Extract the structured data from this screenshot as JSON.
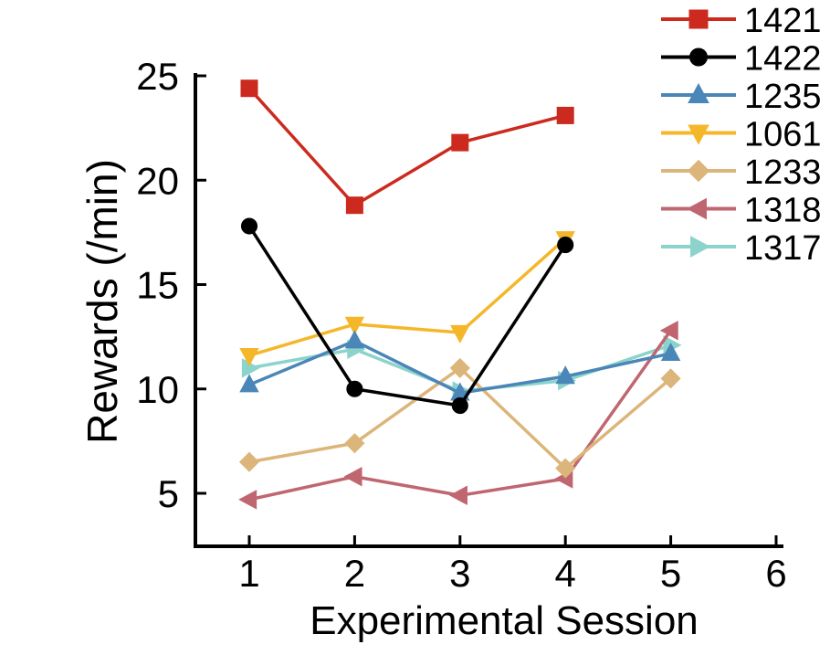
{
  "chart_data": {
    "type": "line",
    "title": "",
    "xlabel": "Experimental Session",
    "ylabel": "Rewards (/min)",
    "xlim": [
      0.5,
      6
    ],
    "ylim": [
      2.5,
      25.5
    ],
    "xticks": [
      1,
      2,
      3,
      4,
      5,
      6
    ],
    "yticks": [
      5,
      10,
      15,
      20,
      25
    ],
    "grid": false,
    "legend_position": "top-right",
    "series": [
      {
        "name": "1421",
        "color": "#cc2a1e",
        "marker": "square",
        "x": [
          1,
          2,
          3,
          4
        ],
        "values": [
          24.4,
          18.8,
          21.8,
          23.1
        ]
      },
      {
        "name": "1422",
        "color": "#000000",
        "marker": "circle",
        "x": [
          1,
          2,
          3,
          4
        ],
        "values": [
          17.8,
          10.0,
          9.2,
          16.9
        ]
      },
      {
        "name": "1235",
        "color": "#4a86b8",
        "marker": "triangle-up",
        "x": [
          1,
          2,
          3,
          4,
          5
        ],
        "values": [
          10.2,
          12.3,
          9.8,
          10.6,
          11.7
        ]
      },
      {
        "name": "1061",
        "color": "#f5b72a",
        "marker": "triangle-down",
        "x": [
          1,
          2,
          3,
          4
        ],
        "values": [
          11.6,
          13.1,
          12.7,
          17.2
        ]
      },
      {
        "name": "1233",
        "color": "#dcb57a",
        "marker": "diamond",
        "x": [
          1,
          2,
          3,
          4,
          5
        ],
        "values": [
          6.5,
          7.4,
          11.0,
          6.2,
          10.5
        ]
      },
      {
        "name": "1318",
        "color": "#c06670",
        "marker": "triangle-left",
        "x": [
          1,
          2,
          3,
          4,
          5
        ],
        "values": [
          4.7,
          5.8,
          4.9,
          5.7,
          12.8
        ]
      },
      {
        "name": "1317",
        "color": "#8cd3cc",
        "marker": "triangle-right",
        "x": [
          1,
          2,
          3,
          4,
          5
        ],
        "values": [
          11.0,
          11.9,
          9.9,
          10.4,
          12.1
        ]
      }
    ]
  }
}
